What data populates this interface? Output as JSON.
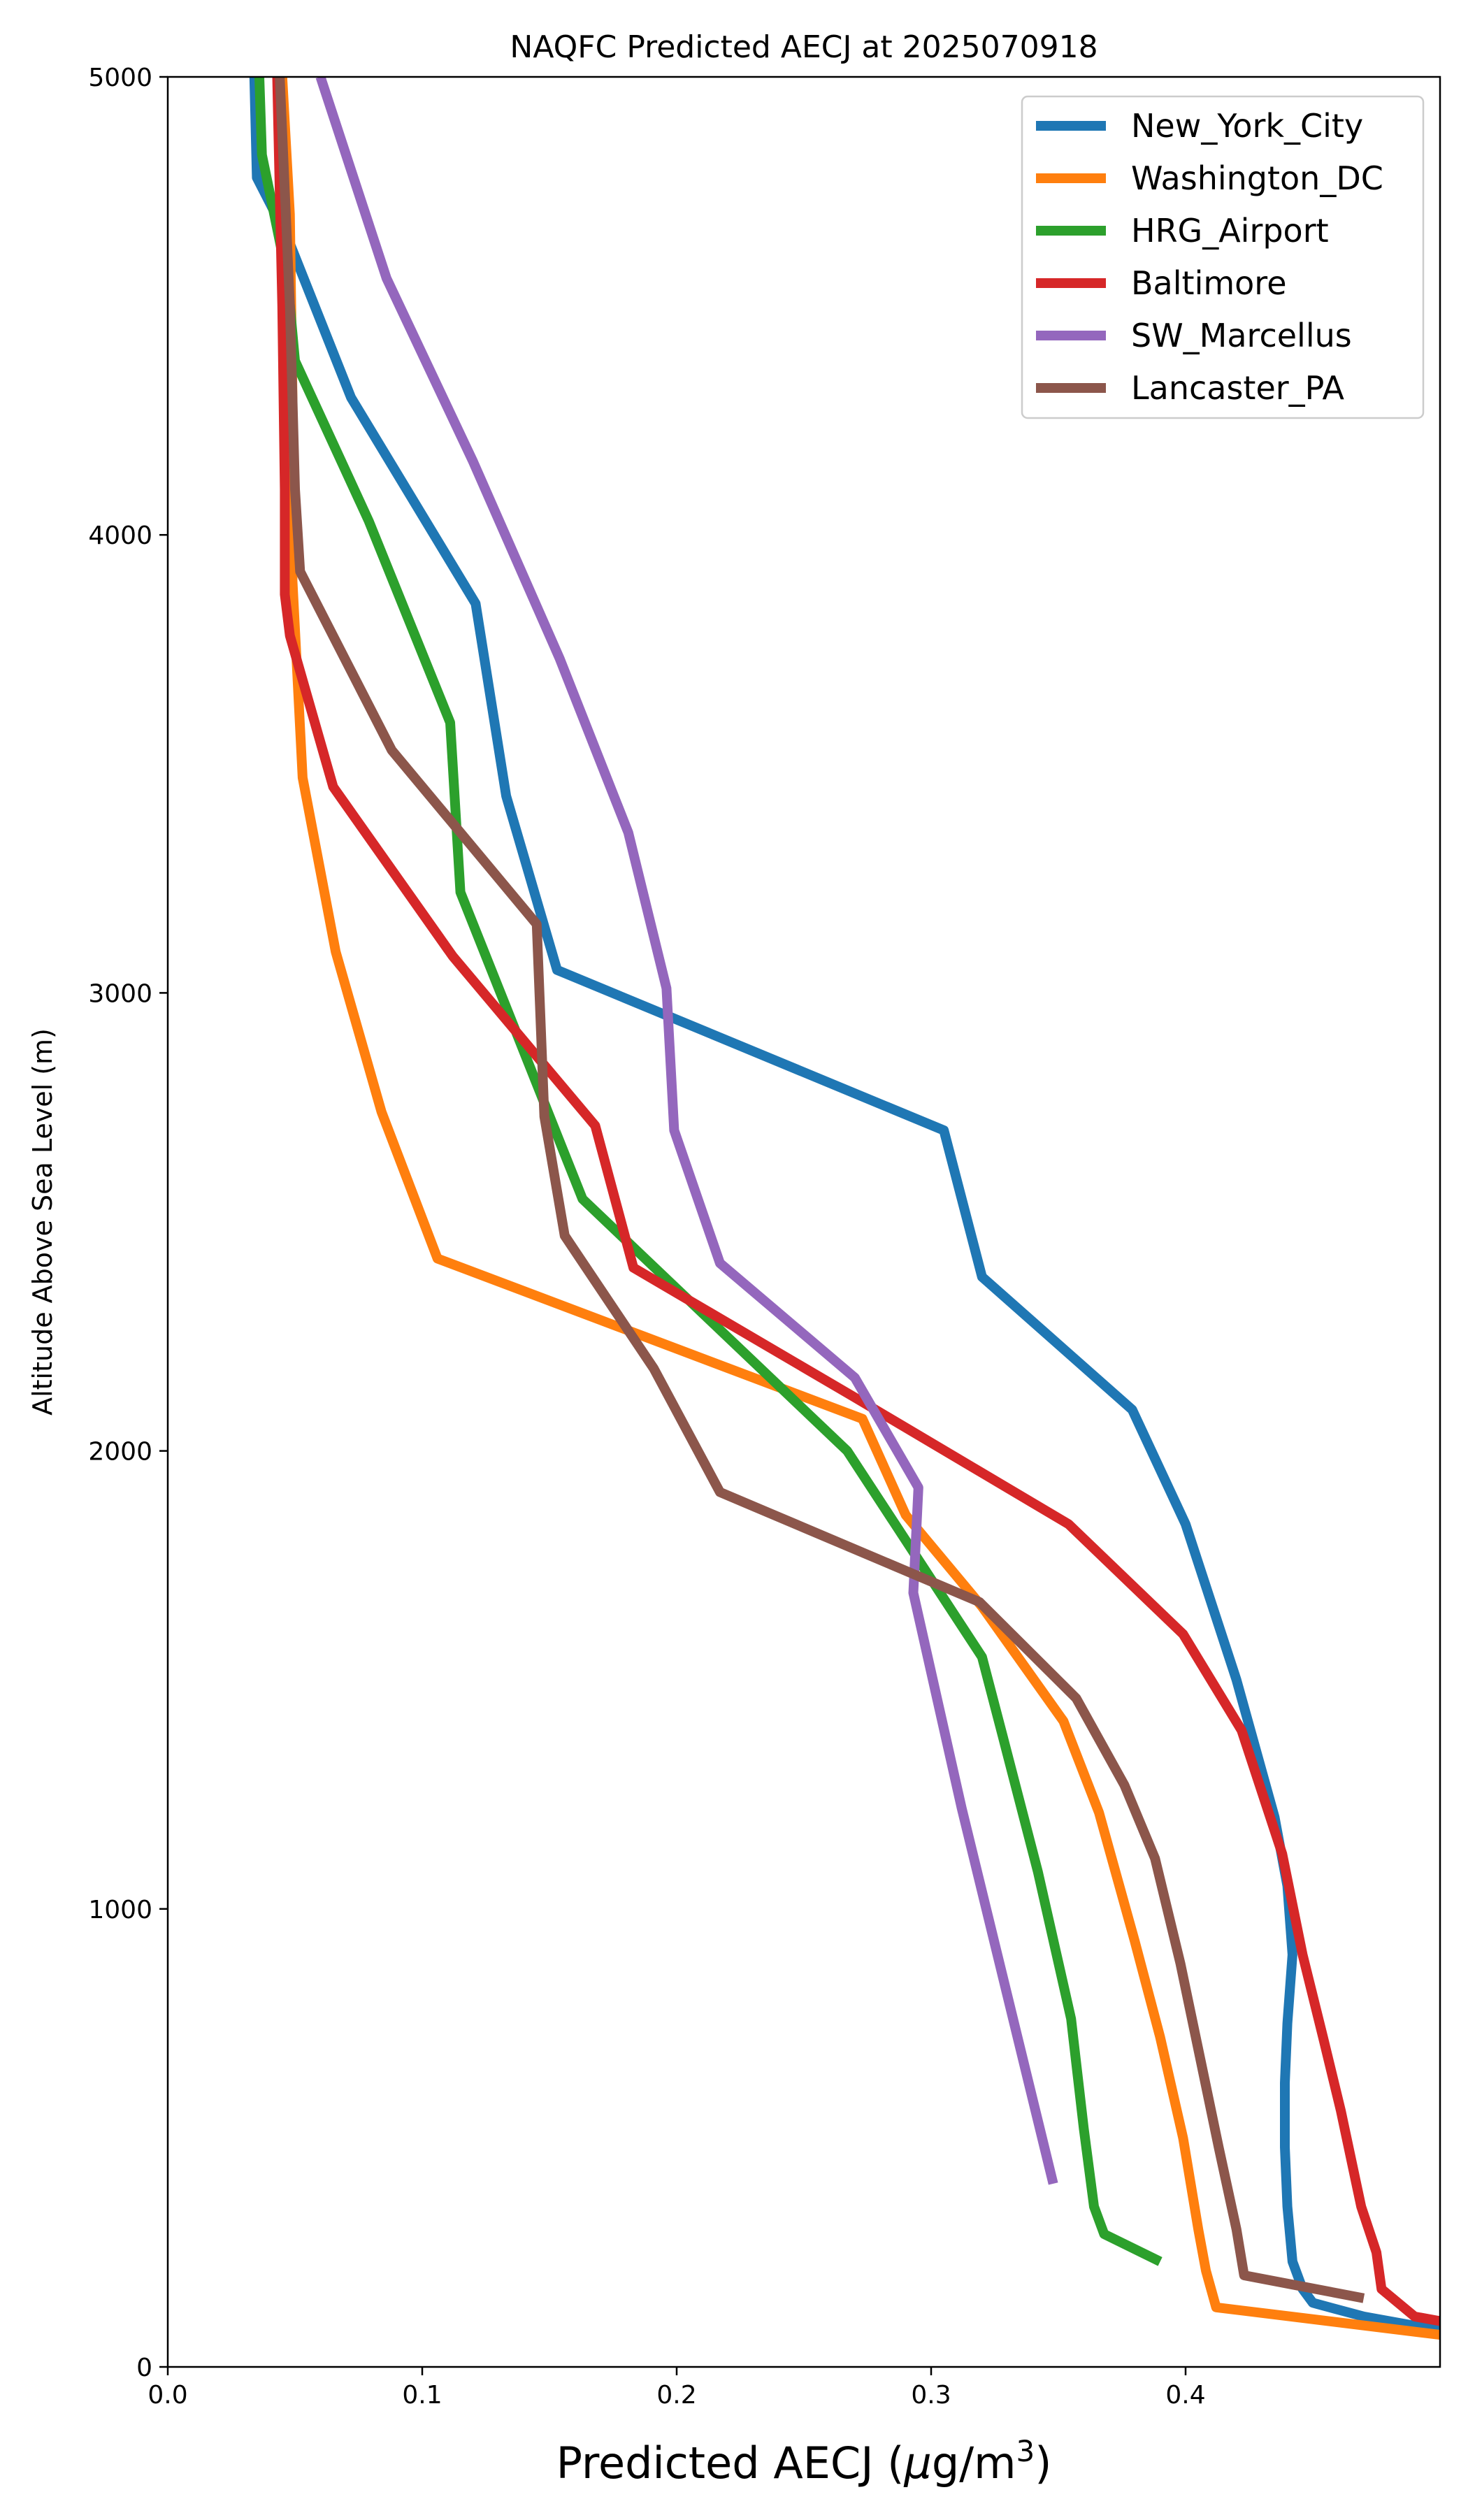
{
  "chart_data": {
    "type": "line",
    "title": "NAQFC Predicted AECJ at 2025070918",
    "xlabel_prefix": "Predicted AECJ (",
    "xlabel_mu": "μ",
    "xlabel_unit": "g/m",
    "xlabel_exp": "3",
    "xlabel_suffix": ")",
    "ylabel": "Altitude Above Sea Level (m)",
    "xlim": [
      0,
      0.5
    ],
    "ylim": [
      0,
      5000
    ],
    "xticks": [
      {
        "value": 0.0,
        "label": "0.0"
      },
      {
        "value": 0.1,
        "label": "0.1"
      },
      {
        "value": 0.2,
        "label": "0.2"
      },
      {
        "value": 0.3,
        "label": "0.3"
      },
      {
        "value": 0.4,
        "label": "0.4"
      }
    ],
    "yticks": [
      {
        "value": 0,
        "label": "0"
      },
      {
        "value": 1000,
        "label": "1000"
      },
      {
        "value": 2000,
        "label": "2000"
      },
      {
        "value": 3000,
        "label": "3000"
      },
      {
        "value": 4000,
        "label": "4000"
      },
      {
        "value": 5000,
        "label": "5000"
      }
    ],
    "grid": false,
    "legend_position": "top-right",
    "series": [
      {
        "name": "New_York_City",
        "color": "#1f77b4",
        "points": [
          [
            0.5,
            80
          ],
          [
            0.47,
            110
          ],
          [
            0.45,
            140
          ],
          [
            0.446,
            170
          ],
          [
            0.442,
            230
          ],
          [
            0.44,
            350
          ],
          [
            0.439,
            480
          ],
          [
            0.439,
            620
          ],
          [
            0.44,
            750
          ],
          [
            0.442,
            900
          ],
          [
            0.44,
            1050
          ],
          [
            0.435,
            1200
          ],
          [
            0.42,
            1500
          ],
          [
            0.4,
            1840
          ],
          [
            0.379,
            2090
          ],
          [
            0.32,
            2380
          ],
          [
            0.305,
            2700
          ],
          [
            0.153,
            3050
          ],
          [
            0.133,
            3430
          ],
          [
            0.121,
            3850
          ],
          [
            0.072,
            4300
          ],
          [
            0.047,
            4650
          ],
          [
            0.035,
            4780
          ],
          [
            0.034,
            5000
          ]
        ]
      },
      {
        "name": "Washington_DC",
        "color": "#ff7f0e",
        "points": [
          [
            0.5,
            70
          ],
          [
            0.412,
            130
          ],
          [
            0.408,
            210
          ],
          [
            0.405,
            300
          ],
          [
            0.399,
            500
          ],
          [
            0.39,
            720
          ],
          [
            0.38,
            930
          ],
          [
            0.366,
            1210
          ],
          [
            0.352,
            1410
          ],
          [
            0.32,
            1660
          ],
          [
            0.29,
            1860
          ],
          [
            0.273,
            2070
          ],
          [
            0.106,
            2420
          ],
          [
            0.084,
            2740
          ],
          [
            0.066,
            3090
          ],
          [
            0.053,
            3470
          ],
          [
            0.049,
            3900
          ],
          [
            0.049,
            4300
          ],
          [
            0.048,
            4700
          ],
          [
            0.045,
            5000
          ]
        ]
      },
      {
        "name": "HRG_Airport",
        "color": "#2ca02c",
        "points": [
          [
            0.39,
            230
          ],
          [
            0.368,
            290
          ],
          [
            0.364,
            350
          ],
          [
            0.36,
            520
          ],
          [
            0.355,
            760
          ],
          [
            0.342,
            1080
          ],
          [
            0.328,
            1380
          ],
          [
            0.32,
            1550
          ],
          [
            0.267,
            2000
          ],
          [
            0.163,
            2550
          ],
          [
            0.115,
            3220
          ],
          [
            0.111,
            3590
          ],
          [
            0.079,
            4030
          ],
          [
            0.05,
            4380
          ],
          [
            0.047,
            4560
          ],
          [
            0.037,
            4830
          ],
          [
            0.036,
            5000
          ]
        ]
      },
      {
        "name": "Baltimore",
        "color": "#d62728",
        "points": [
          [
            0.5,
            100
          ],
          [
            0.49,
            110
          ],
          [
            0.477,
            170
          ],
          [
            0.475,
            250
          ],
          [
            0.469,
            350
          ],
          [
            0.461,
            560
          ],
          [
            0.454,
            720
          ],
          [
            0.446,
            900
          ],
          [
            0.438,
            1120
          ],
          [
            0.422,
            1390
          ],
          [
            0.399,
            1600
          ],
          [
            0.354,
            1840
          ],
          [
            0.269,
            2120
          ],
          [
            0.183,
            2400
          ],
          [
            0.168,
            2710
          ],
          [
            0.112,
            3080
          ],
          [
            0.065,
            3450
          ],
          [
            0.048,
            3780
          ],
          [
            0.046,
            3870
          ],
          [
            0.046,
            4100
          ],
          [
            0.045,
            4500
          ],
          [
            0.043,
            5000
          ]
        ]
      },
      {
        "name": "SW_Marcellus",
        "color": "#9467bd",
        "points": [
          [
            0.348,
            400
          ],
          [
            0.33,
            810
          ],
          [
            0.312,
            1220
          ],
          [
            0.293,
            1690
          ],
          [
            0.295,
            1920
          ],
          [
            0.27,
            2160
          ],
          [
            0.217,
            2410
          ],
          [
            0.199,
            2700
          ],
          [
            0.196,
            3010
          ],
          [
            0.181,
            3350
          ],
          [
            0.154,
            3730
          ],
          [
            0.12,
            4160
          ],
          [
            0.086,
            4560
          ],
          [
            0.06,
            5000
          ]
        ]
      },
      {
        "name": "Lancaster_PA",
        "color": "#8c564b",
        "points": [
          [
            0.47,
            150
          ],
          [
            0.423,
            200
          ],
          [
            0.42,
            300
          ],
          [
            0.413,
            480
          ],
          [
            0.407,
            640
          ],
          [
            0.398,
            880
          ],
          [
            0.388,
            1110
          ],
          [
            0.376,
            1270
          ],
          [
            0.357,
            1460
          ],
          [
            0.319,
            1670
          ],
          [
            0.217,
            1910
          ],
          [
            0.191,
            2180
          ],
          [
            0.156,
            2470
          ],
          [
            0.148,
            2730
          ],
          [
            0.145,
            3150
          ],
          [
            0.088,
            3530
          ],
          [
            0.052,
            3920
          ],
          [
            0.05,
            4100
          ],
          [
            0.048,
            4500
          ],
          [
            0.044,
            5000
          ]
        ]
      }
    ]
  }
}
